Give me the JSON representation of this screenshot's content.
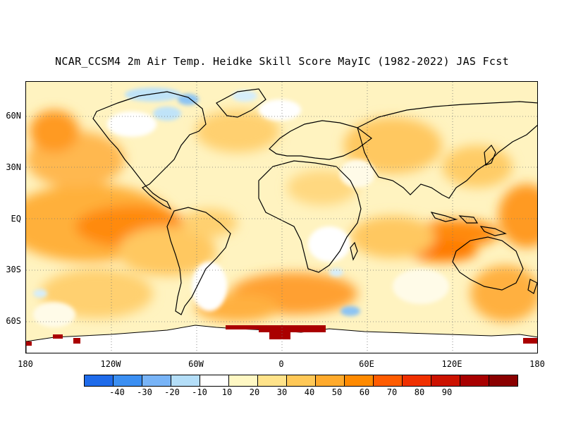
{
  "title": "NCAR_CCSM4 2m Air Temp. Heidke Skill Score MayIC (1982-2022) JAS Fcst",
  "lat_labels": [
    "60N",
    "30N",
    "EQ",
    "30S",
    "60S"
  ],
  "lon_labels": [
    "180",
    "120W",
    "60W",
    "0",
    "60E",
    "120E",
    "180"
  ],
  "colorbar": {
    "colors": [
      "#1f6bea",
      "#3b8ff2",
      "#78b4f7",
      "#b4def8",
      "#ffffff",
      "#fff8c4",
      "#ffe38a",
      "#ffc857",
      "#ffaa2c",
      "#ff8a00",
      "#ff5c00",
      "#f03000",
      "#cc1200",
      "#a80000",
      "#8a0000"
    ],
    "labels": [
      "-40",
      "-30",
      "-20",
      "-10",
      "10",
      "20",
      "30",
      "40",
      "50",
      "60",
      "70",
      "80",
      "90"
    ]
  }
}
